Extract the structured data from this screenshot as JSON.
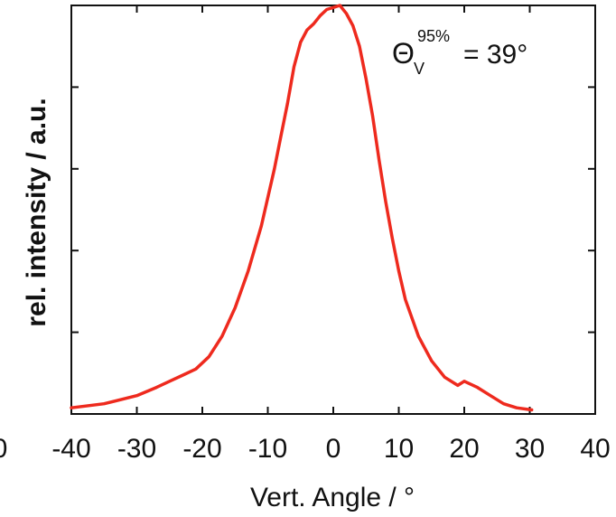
{
  "chart_data": {
    "type": "line",
    "xlabel": "Vert. Angle / °",
    "ylabel": "rel. intensity / a.u.",
    "xlim": [
      -40,
      40
    ],
    "ylim": [
      0,
      1.0
    ],
    "x_ticks": [
      -40,
      -30,
      -20,
      -10,
      0,
      10,
      20,
      30,
      40
    ],
    "clipped_tick_label": "0",
    "y_tick_count": 5,
    "grid": false,
    "series_color": "#ee2a1e",
    "annotation": {
      "symbol": "Θ",
      "subscript": "V",
      "superscript": "95%",
      "text": "= 39°"
    },
    "series": [
      {
        "x": [
          -40,
          -35,
          -30,
          -27,
          -25,
          -23,
          -21,
          -19,
          -17,
          -15,
          -13,
          -11,
          -9,
          -8,
          -7,
          -6,
          -5,
          -4,
          -3,
          -2,
          -1,
          0,
          1,
          2,
          3,
          4,
          5,
          6,
          7,
          8,
          9,
          10,
          11,
          13,
          15,
          17,
          19,
          20,
          22,
          24,
          26,
          28,
          30.3
        ],
        "y": [
          0.015,
          0.025,
          0.045,
          0.065,
          0.08,
          0.095,
          0.11,
          0.14,
          0.19,
          0.26,
          0.35,
          0.46,
          0.6,
          0.68,
          0.76,
          0.85,
          0.91,
          0.94,
          0.955,
          0.975,
          0.99,
          0.995,
          1.0,
          0.98,
          0.95,
          0.9,
          0.82,
          0.73,
          0.62,
          0.52,
          0.43,
          0.35,
          0.28,
          0.19,
          0.13,
          0.09,
          0.07,
          0.08,
          0.065,
          0.045,
          0.025,
          0.015,
          0.01
        ]
      }
    ]
  }
}
